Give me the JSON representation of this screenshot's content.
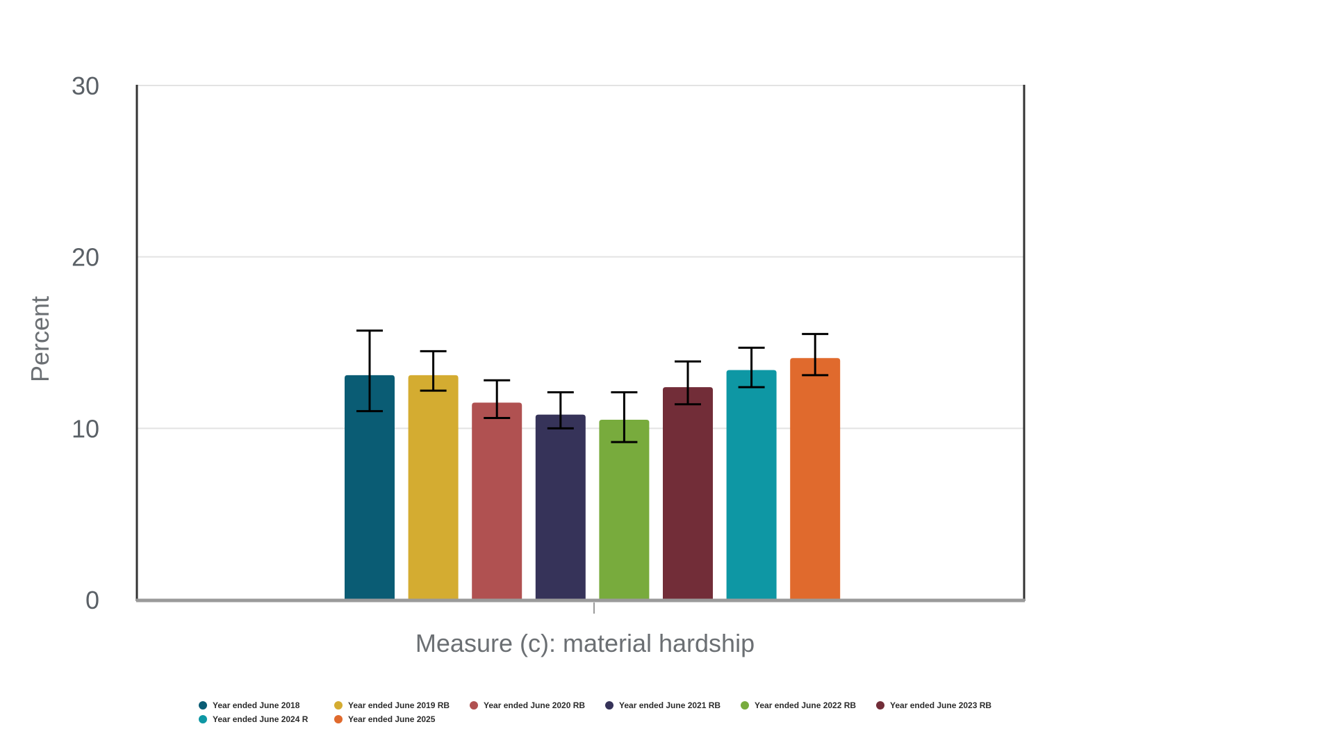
{
  "chart_data": {
    "type": "bar",
    "title": "",
    "xlabel": "Measure (c): material hardship",
    "ylabel": "Percent",
    "ylim": [
      0,
      30
    ],
    "yticks": [
      0,
      10,
      20,
      30
    ],
    "grid": true,
    "legend_position": "bottom",
    "categories": [
      "Measure (c): material hardship"
    ],
    "series": [
      {
        "name": "Year ended June 2018",
        "values": [
          13.1
        ],
        "error_low": [
          11.0
        ],
        "error_high": [
          15.7
        ],
        "color": "#0a5c74"
      },
      {
        "name": "Year ended June 2019 RB",
        "values": [
          13.1
        ],
        "error_low": [
          12.2
        ],
        "error_high": [
          14.5
        ],
        "color": "#d4ac31"
      },
      {
        "name": "Year ended June 2020 RB",
        "values": [
          11.5
        ],
        "error_low": [
          10.6
        ],
        "error_high": [
          12.8
        ],
        "color": "#b05151"
      },
      {
        "name": "Year ended June 2021 RB",
        "values": [
          10.8
        ],
        "error_low": [
          10.0
        ],
        "error_high": [
          12.1
        ],
        "color": "#363359"
      },
      {
        "name": "Year ended June 2022 RB",
        "values": [
          10.5
        ],
        "error_low": [
          9.2
        ],
        "error_high": [
          12.1
        ],
        "color": "#78ab3d"
      },
      {
        "name": "Year ended June 2023 RB",
        "values": [
          12.4
        ],
        "error_low": [
          11.4
        ],
        "error_high": [
          13.9
        ],
        "color": "#722d38"
      },
      {
        "name": "Year ended June 2024 R",
        "values": [
          13.4
        ],
        "error_low": [
          12.4
        ],
        "error_high": [
          14.7
        ],
        "color": "#0e97a4"
      },
      {
        "name": "Year ended June 2025",
        "values": [
          14.1
        ],
        "error_low": [
          13.1
        ],
        "error_high": [
          15.5
        ],
        "color": "#e06a2d"
      }
    ]
  }
}
